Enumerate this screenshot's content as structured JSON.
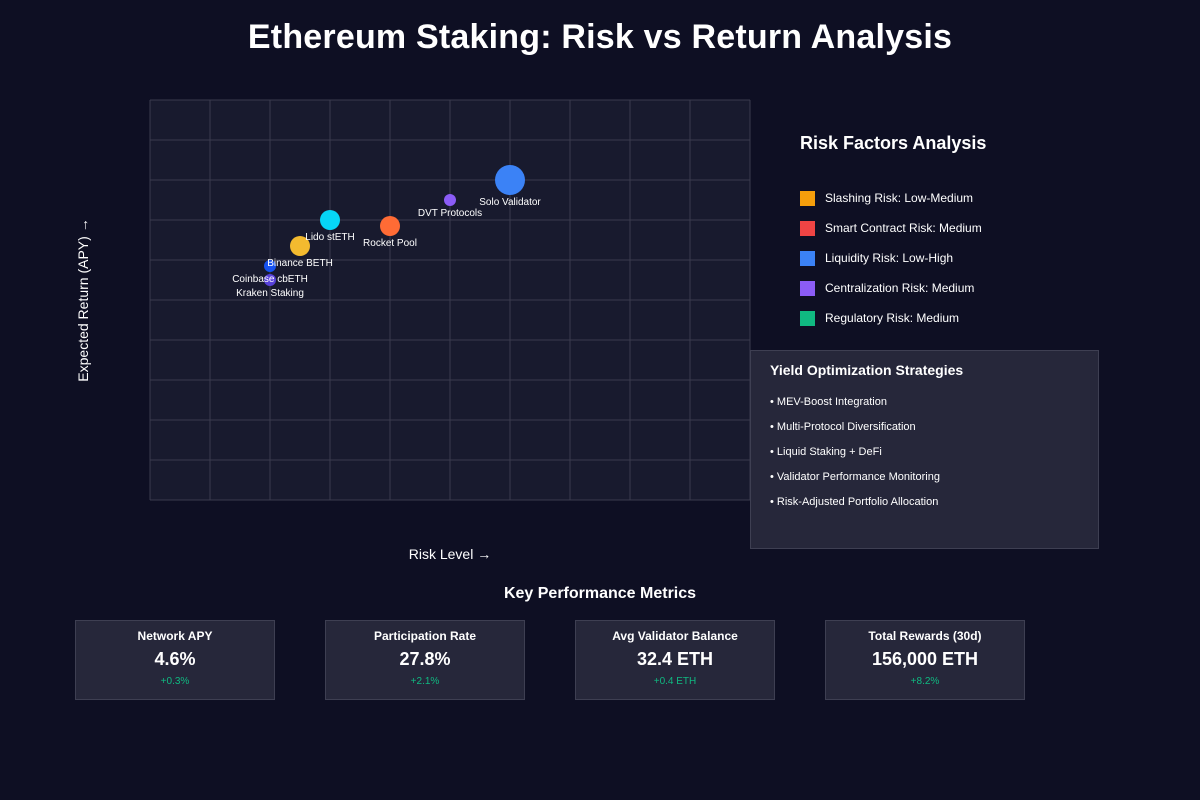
{
  "title": "Ethereum Staking: Risk vs Return Analysis",
  "chart_data": {
    "type": "scatter",
    "xlabel": "Risk Level",
    "ylabel": "Expected Return (APY)",
    "grid": true,
    "xlim": [
      0,
      10
    ],
    "ylim": [
      0,
      10
    ],
    "x_ticks_shown": false,
    "y_ticks_shown": false,
    "points": [
      {
        "name": "Solo Validator",
        "x": 6.0,
        "y": 8.0,
        "size": "large",
        "color": "#3b82f6",
        "label_pos": "below"
      },
      {
        "name": "DVT Protocols",
        "x": 5.0,
        "y": 7.5,
        "size": "small",
        "color": "#8b5cf6",
        "label_pos": "below"
      },
      {
        "name": "Lido stETH",
        "x": 3.0,
        "y": 7.0,
        "size": "medium",
        "color": "#06d6f7",
        "label_pos": "below"
      },
      {
        "name": "Rocket Pool",
        "x": 4.0,
        "y": 6.85,
        "size": "medium",
        "color": "#ff6b35",
        "label_pos": "below"
      },
      {
        "name": "Binance BETH",
        "x": 2.5,
        "y": 6.35,
        "size": "medium",
        "color": "#f3ba2f",
        "label_pos": "below"
      },
      {
        "name": "Coinbase cbETH",
        "x": 2.0,
        "y": 5.85,
        "size": "small",
        "color": "#1652f0",
        "label_pos": "below"
      },
      {
        "name": "Kraken Staking",
        "x": 2.0,
        "y": 5.5,
        "size": "small",
        "color": "#5741d9",
        "label_pos": "below"
      }
    ]
  },
  "risk_factors": {
    "title": "Risk Factors Analysis",
    "items": [
      {
        "label": "Slashing Risk: Low-Medium",
        "color": "#f59e0b"
      },
      {
        "label": "Smart Contract Risk: Medium",
        "color": "#ef4444"
      },
      {
        "label": "Liquidity Risk: Low-High",
        "color": "#3b82f6"
      },
      {
        "label": "Centralization Risk: Medium",
        "color": "#8b5cf6"
      },
      {
        "label": "Regulatory Risk: Medium",
        "color": "#10b981"
      }
    ]
  },
  "strategies": {
    "title": "Yield Optimization Strategies",
    "items": [
      "• MEV-Boost Integration",
      "• Multi-Protocol Diversification",
      "• Liquid Staking + DeFi",
      "• Validator Performance Monitoring",
      "• Risk-Adjusted Portfolio Allocation"
    ]
  },
  "metrics": {
    "title": "Key Performance Metrics",
    "cards": [
      {
        "label": "Network APY",
        "value": "4.6%",
        "change": "+0.3%"
      },
      {
        "label": "Participation Rate",
        "value": "27.8%",
        "change": "+2.1%"
      },
      {
        "label": "Avg Validator Balance",
        "value": "32.4 ETH",
        "change": "+0.4 ETH"
      },
      {
        "label": "Total Rewards (30d)",
        "value": "156,000 ETH",
        "change": "+8.2%"
      }
    ]
  },
  "colors": {
    "background": "#0e0f23",
    "panel": "#26273a",
    "grid": "#3a3b4e",
    "positive": "#10b981"
  }
}
